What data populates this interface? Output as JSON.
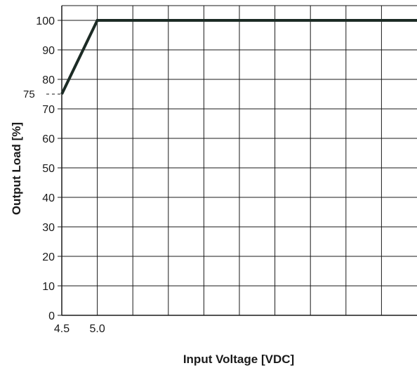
{
  "chart_data": {
    "type": "line",
    "title": "",
    "xlabel": "Input Voltage [VDC]",
    "ylabel": "Output Load [%]",
    "x_tick_labels": [
      "4.5",
      "5.0"
    ],
    "y_tick_labels": [
      "0",
      "10",
      "20",
      "30",
      "40",
      "50",
      "60",
      "70",
      "80",
      "90",
      "100"
    ],
    "grid": true,
    "series": [
      {
        "points": [
          [
            4.5,
            75
          ],
          [
            5.0,
            100
          ],
          [
            9.5,
            100
          ]
        ]
      }
    ],
    "annotations": [
      {
        "label": "75",
        "y": 75,
        "style": "dashed"
      }
    ],
    "xlim": [
      4.5,
      9.5
    ],
    "ylim": [
      0,
      105
    ],
    "colors": {
      "line": "#1c2b25",
      "grid": "#1a1a1a",
      "text": "#1a1a1a"
    }
  }
}
